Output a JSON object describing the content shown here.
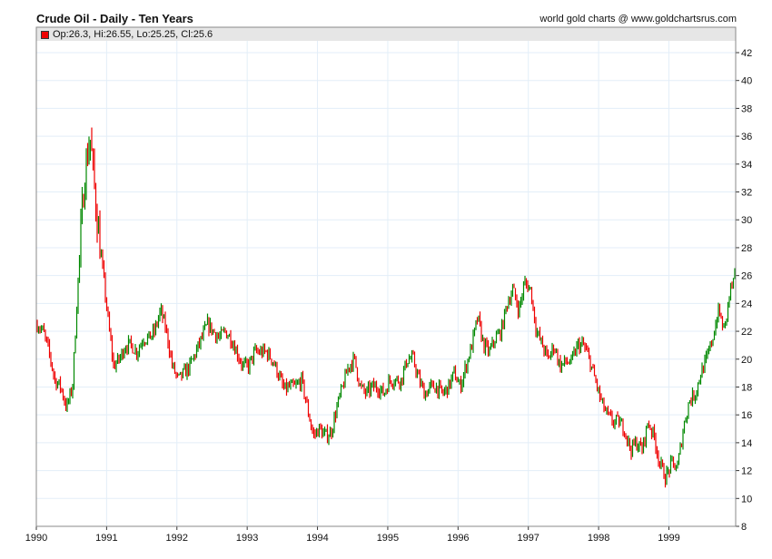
{
  "chart_data": {
    "type": "candlestick",
    "title": "Crude Oil - Daily - Ten Years",
    "credit": "world gold charts @ www.goldchartsrus.com",
    "legend": {
      "label": "Op:26.3, Hi:26.55, Lo:25.25, Cl:25.6",
      "color": "#ee0000"
    },
    "x_ticks": [
      "1990",
      "1991",
      "1992",
      "1993",
      "1994",
      "1995",
      "1996",
      "1997",
      "1998",
      "1999"
    ],
    "y_ticks": [
      8,
      10,
      12,
      14,
      16,
      18,
      20,
      22,
      24,
      26,
      28,
      30,
      32,
      34,
      36,
      38,
      40,
      42
    ],
    "ylim": [
      8,
      42
    ],
    "xlim": [
      1990,
      1999.95
    ],
    "up_color": "#008800",
    "down_color": "#ee0000",
    "monthly_close_approx": [
      22.5,
      22,
      20.5,
      18.5,
      18,
      16.5,
      18,
      26,
      33,
      36,
      31,
      27,
      23,
      19.5,
      20,
      21,
      21,
      20.5,
      21.5,
      21.5,
      22,
      23.5,
      22,
      19.5,
      18.5,
      19,
      19.5,
      20.5,
      21.5,
      22.5,
      22,
      21.5,
      22,
      21.5,
      20.5,
      19.5,
      19.5,
      20.5,
      20.5,
      20.5,
      20,
      19,
      17.8,
      18,
      18,
      18.5,
      16.5,
      14.5,
      15,
      14.5,
      14.7,
      16.5,
      18,
      19.5,
      20,
      18,
      17.5,
      18,
      18,
      17.5,
      18.5,
      18.5,
      18.5,
      20,
      20,
      18.5,
      17.5,
      18,
      18,
      17.5,
      18,
      19,
      18,
      19.5,
      21,
      23,
      21,
      20.5,
      21.5,
      22,
      24,
      25,
      23.5,
      25.5,
      25,
      22,
      21,
      20,
      21,
      19.5,
      19.8,
      19.8,
      21,
      21,
      20,
      18.5,
      17,
      16,
      15.5,
      15.5,
      15,
      13.5,
      14,
      13.5,
      15.5,
      14.5,
      12.5,
      11.5,
      12.5,
      12.2,
      15,
      17,
      17.5,
      19,
      20,
      21.5,
      23.5,
      22,
      25,
      26
    ]
  }
}
